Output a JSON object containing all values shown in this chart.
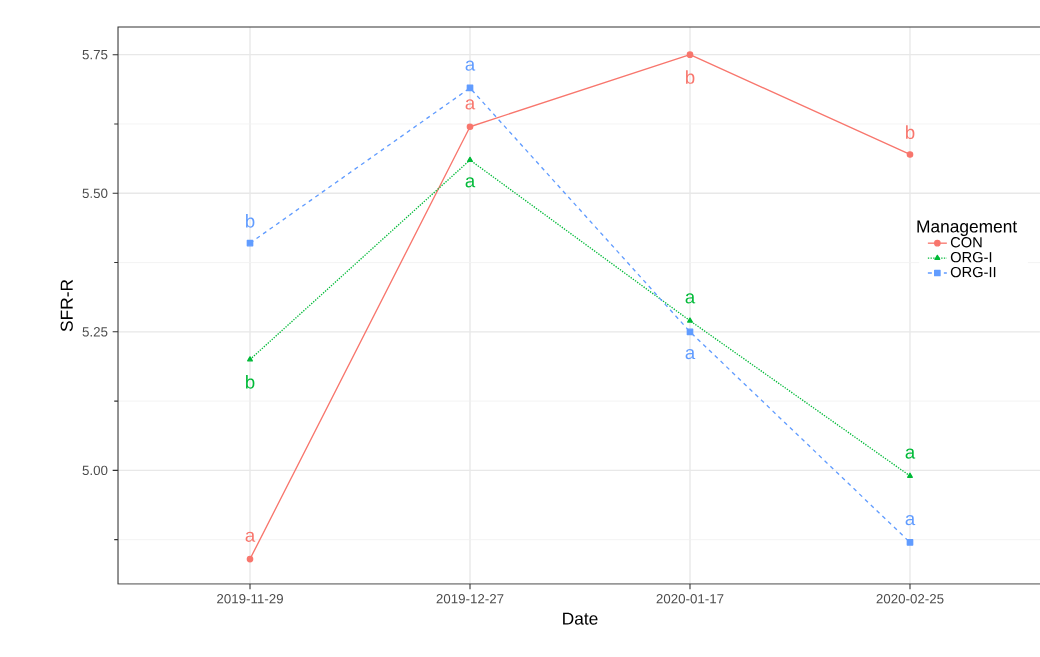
{
  "chart_data": {
    "type": "line",
    "xlabel": "Date",
    "ylabel": "SFR-R",
    "legend_title": "Management",
    "categories": [
      "2019-11-29",
      "2019-12-27",
      "2020-01-17",
      "2020-02-25"
    ],
    "series": [
      {
        "name": "CON",
        "color": "#f8766d",
        "values": [
          4.84,
          5.62,
          5.75,
          5.57
        ],
        "value_labels": [
          "a",
          "a",
          "b",
          "b"
        ],
        "marker": "circle",
        "line_style": "solid"
      },
      {
        "name": "ORG-I",
        "color": "#00ba38",
        "values": [
          5.2,
          5.56,
          5.27,
          4.99
        ],
        "value_labels": [
          "b",
          "a",
          "a",
          "a"
        ],
        "marker": "triangle",
        "line_style": "dotted"
      },
      {
        "name": "ORG-II",
        "color": "#619cff",
        "values": [
          5.41,
          5.69,
          5.25,
          4.87
        ],
        "value_labels": [
          "b",
          "a",
          "a",
          "a"
        ],
        "marker": "square",
        "line_style": "dashed"
      }
    ],
    "ylim": [
      4.795,
      5.8
    ],
    "yticks": [
      {
        "value": 5.0,
        "label": "5.00"
      },
      {
        "value": 5.25,
        "label": "5.25"
      },
      {
        "value": 5.5,
        "label": "5.50"
      },
      {
        "value": 5.75,
        "label": "5.75"
      }
    ],
    "grid": true,
    "legend": "right"
  }
}
